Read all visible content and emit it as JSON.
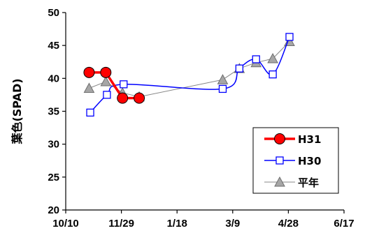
{
  "chart_data": {
    "type": "line",
    "ylabel": "葉色(SPAD)",
    "xlabel": "",
    "ylim": [
      20,
      50
    ],
    "yticks": [
      20,
      25,
      30,
      35,
      40,
      45,
      50
    ],
    "xlim": [
      "10/10",
      "6/17"
    ],
    "xticks": [
      "10/10",
      "11/29",
      "1/18",
      "3/9",
      "4/28",
      "6/17"
    ],
    "grid": false,
    "legend_position": "bottom-right",
    "series": [
      {
        "name": "H31",
        "color": "#ff0000",
        "marker": "circle",
        "points": [
          {
            "x": "10/31",
            "y": 40.9
          },
          {
            "x": "11/15",
            "y": 40.9
          },
          {
            "x": "11/30",
            "y": 37.0
          },
          {
            "x": "12/15",
            "y": 37.0
          }
        ]
      },
      {
        "name": "H30",
        "color": "#0000ff",
        "marker": "square",
        "points": [
          {
            "x": "11/1",
            "y": 34.8
          },
          {
            "x": "11/16",
            "y": 37.5
          },
          {
            "x": "12/1",
            "y": 39.1
          },
          {
            "x": "2/28",
            "y": 38.4
          },
          {
            "x": "3/15",
            "y": 41.5
          },
          {
            "x": "3/30",
            "y": 42.9
          },
          {
            "x": "4/14",
            "y": 40.6
          },
          {
            "x": "4/29",
            "y": 46.3
          }
        ]
      },
      {
        "name": "平年",
        "color": "#888888",
        "marker": "triangle",
        "points": [
          {
            "x": "10/31",
            "y": 38.5
          },
          {
            "x": "11/15",
            "y": 39.5
          },
          {
            "x": "11/30",
            "y": 37.8
          },
          {
            "x": "12/15",
            "y": 37.2
          },
          {
            "x": "2/28",
            "y": 39.8
          },
          {
            "x": "3/15",
            "y": 41.5
          },
          {
            "x": "3/30",
            "y": 42.4
          },
          {
            "x": "4/14",
            "y": 43.0
          },
          {
            "x": "4/29",
            "y": 45.6
          }
        ]
      }
    ]
  }
}
